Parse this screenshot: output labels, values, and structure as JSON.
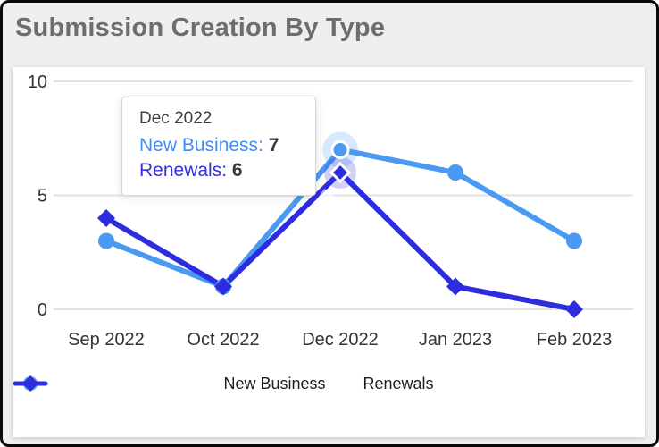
{
  "page": {
    "title": "Submission Creation By Type"
  },
  "chart_data": {
    "type": "line",
    "title": "Submission Creation By Type",
    "categories": [
      "Sep 2022",
      "Oct 2022",
      "Dec 2022",
      "Jan 2023",
      "Feb 2023"
    ],
    "series": [
      {
        "name": "New Business",
        "values": [
          3,
          1,
          7,
          6,
          3
        ],
        "color": "#4A9AF3",
        "marker": "circle"
      },
      {
        "name": "Renewals",
        "values": [
          4,
          1,
          6,
          1,
          0
        ],
        "color": "#2D2DDF",
        "marker": "diamond"
      }
    ],
    "xlabel": "",
    "ylabel": "",
    "ylim": [
      0,
      10
    ],
    "yticks": [
      0,
      5,
      10
    ],
    "grid": true,
    "legend_position": "bottom",
    "highlighted_category_index": 2
  },
  "tooltip": {
    "title": "Dec 2022",
    "rows": [
      {
        "label": "New Business:",
        "value": "7",
        "color": "#418DF1"
      },
      {
        "label": "Renewals:",
        "value": "6",
        "color": "#3730E0"
      }
    ]
  },
  "colors": {
    "page_background": "#efeff0",
    "panel_background": "#ffffff",
    "title_text": "#6d6d6d",
    "axis_text": "#333333",
    "gridline": "#e2e2e2",
    "new_business": "#4A9AF3",
    "renewals": "#2D2DDF"
  }
}
